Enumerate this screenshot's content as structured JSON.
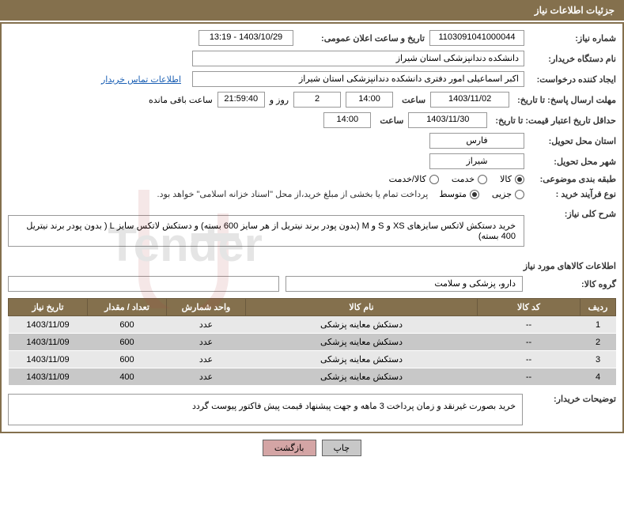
{
  "header": {
    "title": "جزئیات اطلاعات نیاز"
  },
  "need": {
    "number_label": "شماره نیاز:",
    "number": "1103091041000044",
    "announce_label": "تاریخ و ساعت اعلان عمومی:",
    "announce": "1403/10/29 - 13:19"
  },
  "buyer": {
    "org_label": "نام دستگاه خریدار:",
    "org": "دانشکده دندانپزشکی استان شیراز",
    "requester_label": "ایجاد کننده درخواست:",
    "requester": "اکبر اسماعیلی امور دفتری دانشکده دندانپزشکی استان شیراز",
    "contact_link": "اطلاعات تماس خریدار"
  },
  "deadline": {
    "reply_label": "مهلت ارسال پاسخ: تا تاریخ:",
    "date": "1403/11/02",
    "hour_label": "ساعت",
    "hour": "14:00",
    "days": "2",
    "days_label": "روز و",
    "countdown": "21:59:40",
    "remaining_label": "ساعت باقی مانده"
  },
  "validity": {
    "label": "حداقل تاریخ اعتبار قیمت: تا تاریخ:",
    "date": "1403/11/30",
    "hour_label": "ساعت",
    "hour": "14:00"
  },
  "delivery": {
    "province_label": "استان محل تحویل:",
    "province": "فارس",
    "city_label": "شهر محل تحویل:",
    "city": "شیراز"
  },
  "category": {
    "label": "طبقه بندی موضوعی:",
    "options": [
      "کالا",
      "خدمت",
      "کالا/خدمت"
    ],
    "selected": 0
  },
  "process": {
    "label": "نوع فرآیند خرید :",
    "options": [
      "جزیی",
      "متوسط"
    ],
    "selected": 1,
    "note": "پرداخت تمام یا بخشی از مبلغ خرید،از محل \"اسناد خزانه اسلامی\" خواهد بود."
  },
  "summary": {
    "label": "شرح کلی نیاز:",
    "text": "خرید دستکش لاتکس سایزهای XS و S و M (بدون پودر برند نیتریل از هر سایز 600 بسته) و دستکش لاتکس سایز L ( بدون پودر برند نیتریل 400 بسته)"
  },
  "items_section": {
    "title": "اطلاعات کالاهای مورد نیاز",
    "group_label": "گروه کالا:",
    "group": "دارو، پزشکی و سلامت"
  },
  "table": {
    "headers": [
      "ردیف",
      "کد کالا",
      "نام کالا",
      "واحد شمارش",
      "تعداد / مقدار",
      "تاریخ نیاز"
    ],
    "rows": [
      [
        "1",
        "--",
        "دستکش معاینه پزشکی",
        "عدد",
        "600",
        "1403/11/09"
      ],
      [
        "2",
        "--",
        "دستکش معاینه پزشکی",
        "عدد",
        "600",
        "1403/11/09"
      ],
      [
        "3",
        "--",
        "دستکش معاینه پزشکی",
        "عدد",
        "600",
        "1403/11/09"
      ],
      [
        "4",
        "--",
        "دستکش معاینه پزشکی",
        "عدد",
        "400",
        "1403/11/09"
      ]
    ]
  },
  "buyer_notes": {
    "label": "توضیحات خریدار:",
    "text": "خرید بصورت غیرنقد و زمان پرداخت 3 ماهه و جهت پیشنهاد قیمت پیش فاکتور پیوست گردد"
  },
  "buttons": {
    "print": "چاپ",
    "back": "بازگشت"
  },
  "colors": {
    "header_bg": "#84704D",
    "row_alt": "#c8c8c8",
    "row": "#e8e8e8"
  }
}
